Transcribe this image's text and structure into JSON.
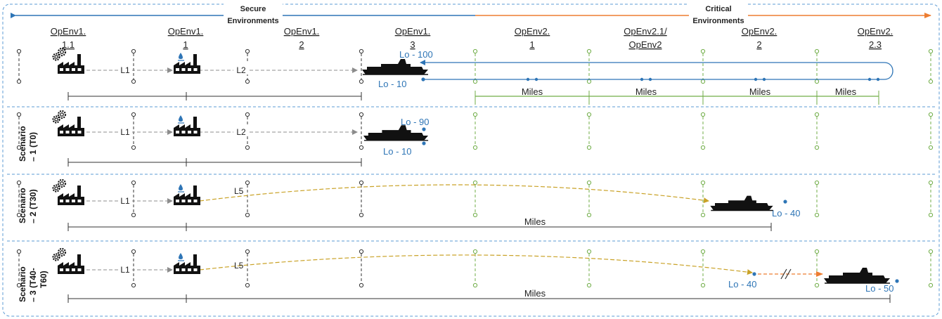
{
  "header": {
    "secure": [
      "Secure",
      "Environments"
    ],
    "critical": [
      "Critical",
      "Environments"
    ]
  },
  "columns": [
    {
      "lines": [
        "OpEnv1.",
        "1.1"
      ]
    },
    {
      "lines": [
        "OpEnv1.",
        "1"
      ]
    },
    {
      "lines": [
        "OpEnv1.",
        "2"
      ]
    },
    {
      "lines": [
        "OpEnv1.",
        "3"
      ]
    },
    {
      "lines": [
        "OpEnv2.",
        "1"
      ]
    },
    {
      "lines": [
        "OpEnv2.1/",
        "OpEnv2"
      ]
    },
    {
      "lines": [
        "OpEnv2.",
        "2"
      ]
    },
    {
      "lines": [
        "OpEnv2.",
        "2.3"
      ]
    }
  ],
  "rows": [
    {
      "label": [],
      "links": [
        "L1",
        "L2"
      ],
      "lo_labels": [
        "Lo - 100",
        "Lo - 10"
      ],
      "miles": [
        "Miles",
        "Miles",
        "Miles",
        "Miles"
      ]
    },
    {
      "label": [
        "Scenario",
        "– 1 (T0)"
      ],
      "links": [
        "L1",
        "L2"
      ],
      "lo_labels": [
        "Lo - 90",
        "Lo - 10"
      ],
      "miles": []
    },
    {
      "label": [
        "Scenario",
        "– 2 (T30)"
      ],
      "links": [
        "L1",
        "L5"
      ],
      "lo_labels": [
        "Lo - 40"
      ],
      "miles": [
        "Miles"
      ]
    },
    {
      "label": [
        "Scenario",
        "– 3 (T40-",
        "T60)"
      ],
      "links": [
        "L1",
        "L5"
      ],
      "lo_labels": [
        "Lo - 40",
        "Lo - 50"
      ],
      "miles": [
        "Miles"
      ]
    }
  ],
  "icons": {
    "factory_gears": "factory-with-gears-icon",
    "factory_drop": "factory-with-droplet-icon",
    "ship": "ship-icon"
  },
  "colors": {
    "secure": "#2e75b6",
    "critical": "#ed7d31",
    "green": "#70ad47",
    "route": "#c9a227",
    "blue": "#2e75b6",
    "border": "#5b9bd5"
  }
}
